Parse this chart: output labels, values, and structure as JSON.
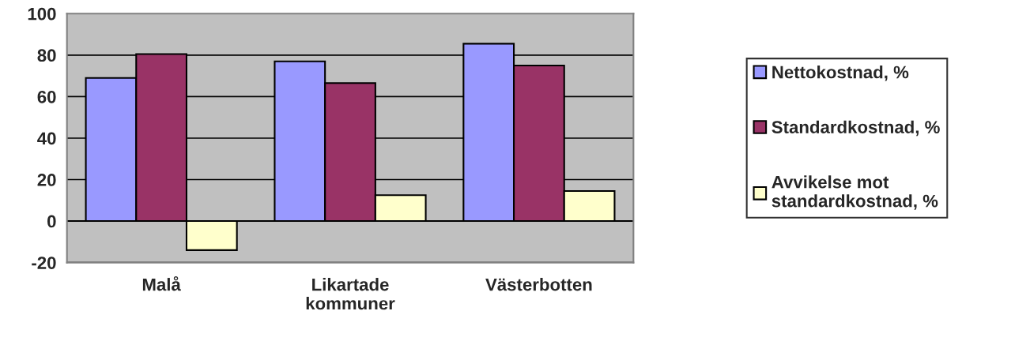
{
  "chart_data": {
    "type": "bar",
    "categories": [
      "Malå",
      "Likartade\nkommuner",
      "Västerbotten"
    ],
    "series": [
      {
        "name": "Nettokostnad, %",
        "color": "#9999ff",
        "values": [
          69,
          77,
          85.5
        ]
      },
      {
        "name": "Standardkostnad, %",
        "color": "#993366",
        "values": [
          80.5,
          66.5,
          75
        ]
      },
      {
        "name": "Avvikelse mot\nstandardkostnad, %",
        "color": "#ffffcc",
        "values": [
          -14,
          12.5,
          14.5
        ]
      }
    ],
    "ylim": [
      -20,
      100
    ],
    "yticks": [
      -20,
      0,
      20,
      40,
      60,
      80,
      100
    ],
    "grid": "y",
    "legend": "right"
  }
}
